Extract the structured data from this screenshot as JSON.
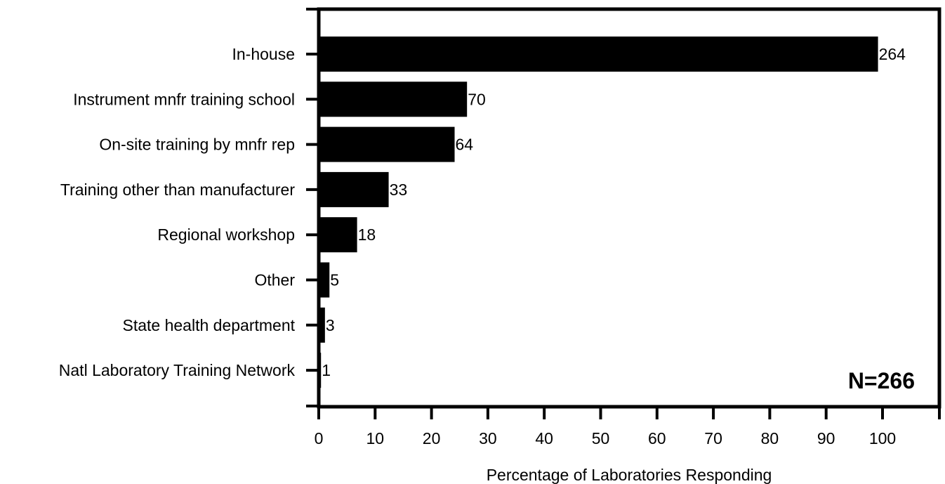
{
  "chart_data": {
    "type": "bar",
    "orientation": "horizontal",
    "categories": [
      "In-house",
      "Instrument mnfr training school",
      "On-site training by mnfr rep",
      "Training other than manufacturer",
      "Regional workshop",
      "Other",
      "State health department",
      "Natl Laboratory Training Network"
    ],
    "series": [
      {
        "values": [
          99.2,
          26.3,
          24.1,
          12.4,
          6.8,
          1.9,
          1.1,
          0.4
        ],
        "data_labels": [
          "264",
          "70",
          "64",
          "33",
          "18",
          "5",
          "3",
          "1"
        ]
      }
    ],
    "xlabel": "Percentage of Laboratories Responding",
    "ylabel": "",
    "xlim": [
      0,
      110
    ],
    "xticks": [
      0,
      10,
      20,
      30,
      40,
      50,
      60,
      70,
      80,
      90,
      100
    ],
    "grid": false,
    "annotation": "N=266",
    "bar_color": "#000000"
  }
}
